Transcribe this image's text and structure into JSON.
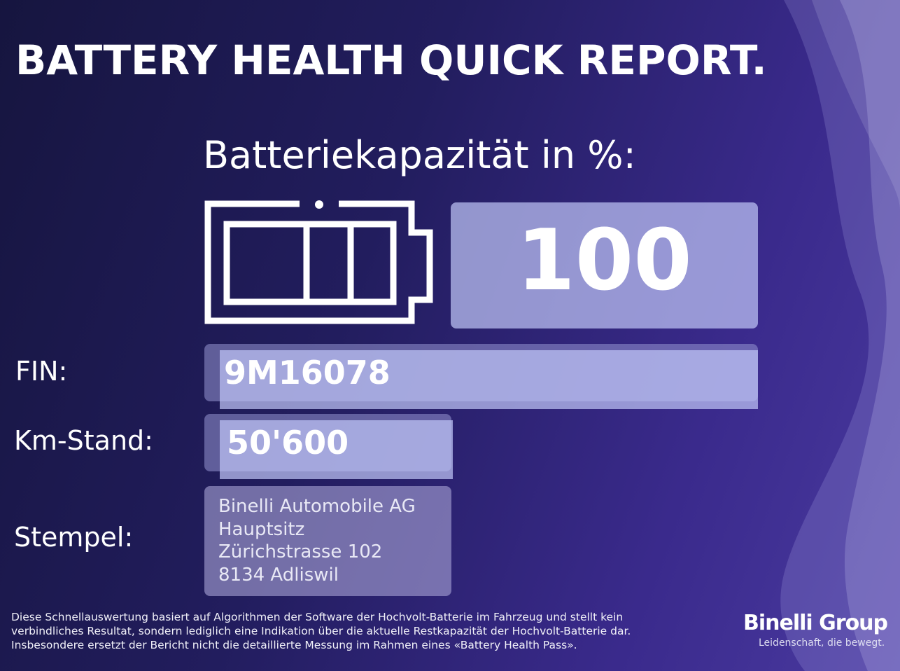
{
  "header": {
    "title": "BATTERY HEALTH QUICK REPORT."
  },
  "capacity": {
    "label": "Batteriekapazität in %:",
    "value": "100"
  },
  "fields": [
    {
      "label": "FIN:",
      "value": "9M16078"
    },
    {
      "label": "Km-Stand:",
      "value": "50'600"
    }
  ],
  "stamp": {
    "label": "Stempel:",
    "lines": [
      "Binelli Automobile AG",
      "Hauptsitz",
      "Zürichstrasse 102",
      "8134 Adliswil"
    ]
  },
  "disclaimer": [
    "Diese Schnellauswertung basiert auf Algorithmen der Software der Hochvolt-Batterie im Fahrzeug und stellt kein",
    "verbindliches Resultat, sondern lediglich eine Indikation über die aktuelle Restkapazität der Hochvolt-Batterie dar.",
    "Insbesondere ersetzt der Bericht nicht die detaillierte Messung im Rahmen eines «Battery Health Pass»."
  ],
  "brand": {
    "name": "Binelli Group",
    "tagline": "Leidenschaft, die bewegt."
  }
}
